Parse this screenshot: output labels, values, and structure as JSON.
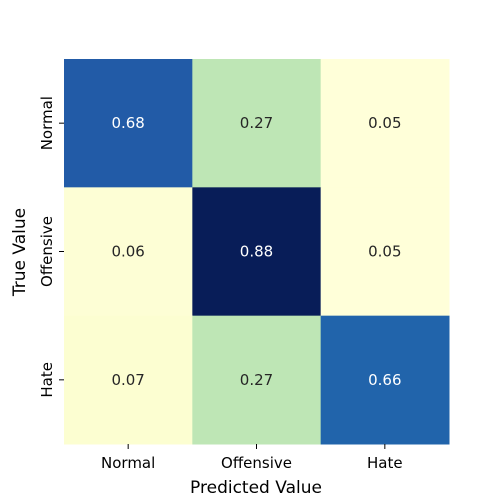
{
  "chart_data": {
    "type": "heatmap",
    "title": "",
    "xlabel": "Predicted Value",
    "ylabel": "True Value",
    "x_categories": [
      "Normal",
      "Offensive",
      "Hate"
    ],
    "y_categories": [
      "Normal",
      "Offensive",
      "Hate"
    ],
    "values": [
      [
        0.68,
        0.27,
        0.05
      ],
      [
        0.06,
        0.88,
        0.05
      ],
      [
        0.07,
        0.27,
        0.66
      ]
    ],
    "colormap": "YlGnBu",
    "color_range": [
      0.05,
      0.88
    ],
    "colorbar": false,
    "grid": false,
    "annotations_format": "0.00"
  }
}
